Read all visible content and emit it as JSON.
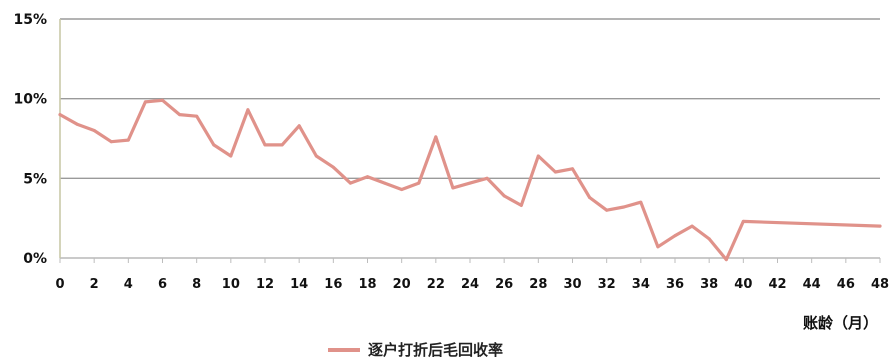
{
  "chart_data": {
    "type": "line",
    "xlabel": "账龄（月）",
    "ylabel": "",
    "x_ticks": [
      "0",
      "2",
      "4",
      "6",
      "8",
      "10",
      "12",
      "14",
      "16",
      "18",
      "20",
      "22",
      "24",
      "26",
      "28",
      "30",
      "32",
      "34",
      "36",
      "38",
      "40",
      "42",
      "44",
      "46",
      "48"
    ],
    "y_ticks": [
      "0%",
      "5%",
      "10%",
      "15%"
    ],
    "xlim": [
      0,
      48
    ],
    "ylim": [
      0,
      15
    ],
    "grid": "horizontal",
    "legend_position": "bottom",
    "series": [
      {
        "name": "逐户打折后毛回收率",
        "color": "#e0928a",
        "x": [
          0,
          1,
          2,
          3,
          4,
          5,
          6,
          7,
          8,
          9,
          10,
          11,
          12,
          13,
          14,
          15,
          16,
          17,
          18,
          19,
          20,
          21,
          22,
          23,
          24,
          25,
          26,
          27,
          28,
          29,
          30,
          31,
          32,
          33,
          34,
          35,
          36,
          37,
          38,
          39,
          40,
          48
        ],
        "y": [
          9.0,
          8.4,
          8.0,
          7.3,
          7.4,
          9.8,
          9.9,
          9.0,
          8.9,
          7.1,
          6.4,
          9.3,
          7.1,
          7.1,
          8.3,
          6.4,
          5.7,
          4.7,
          5.1,
          4.7,
          4.3,
          4.7,
          7.6,
          4.4,
          4.7,
          5.0,
          3.9,
          3.3,
          6.4,
          5.4,
          5.6,
          3.8,
          3.0,
          3.2,
          3.5,
          0.7,
          1.4,
          2.0,
          1.2,
          -0.1,
          2.3,
          2.0
        ]
      }
    ]
  }
}
